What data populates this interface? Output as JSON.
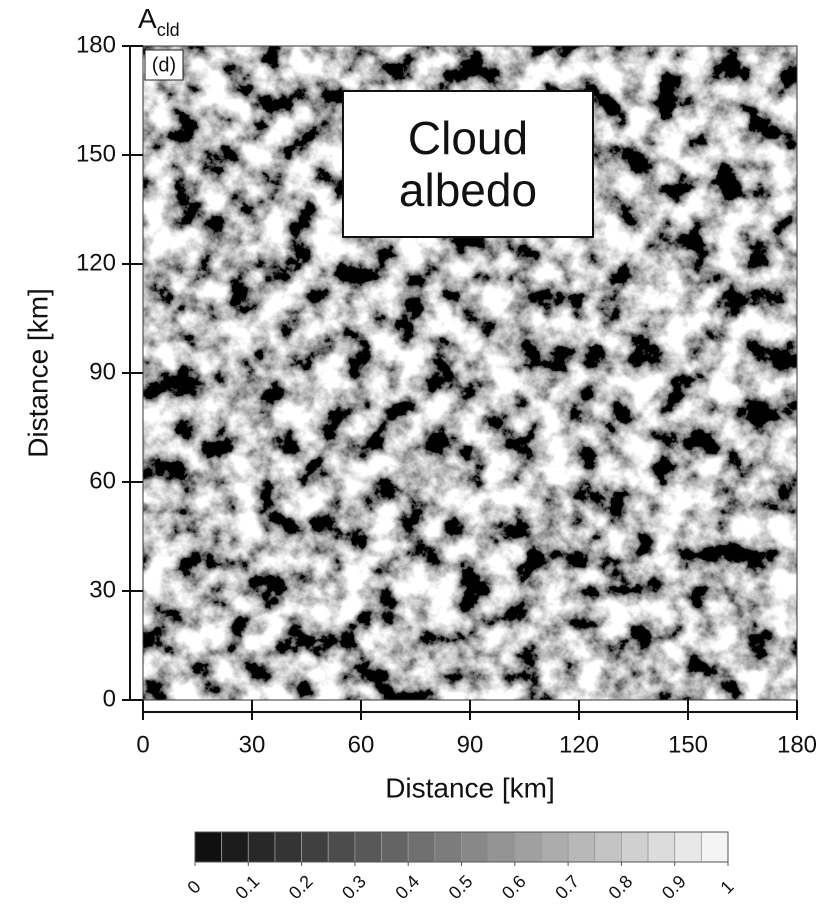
{
  "chart_data": {
    "type": "heatmap",
    "title": "A",
    "title_subscript": "cld",
    "panel_label": "(d)",
    "annotation": "Cloud albedo",
    "xlabel": "Distance [km]",
    "ylabel": "Distance [km]",
    "xlim": [
      0,
      180
    ],
    "xticks": [
      0,
      30,
      60,
      90,
      120,
      150,
      180
    ],
    "ylim": [
      0,
      180
    ],
    "yticks": [
      0,
      30,
      60,
      90,
      120,
      150,
      180
    ],
    "colorbar": {
      "bins": [
        0,
        0.05,
        0.1,
        0.15,
        0.2,
        0.25,
        0.3,
        0.35,
        0.4,
        0.45,
        0.5,
        0.55,
        0.6,
        0.65,
        0.7,
        0.75,
        0.8,
        0.85,
        0.9,
        0.95,
        1
      ],
      "ticks": [
        0,
        0.1,
        0.2,
        0.3,
        0.4,
        0.5,
        0.6,
        0.7,
        0.8,
        0.9,
        1
      ]
    }
  }
}
